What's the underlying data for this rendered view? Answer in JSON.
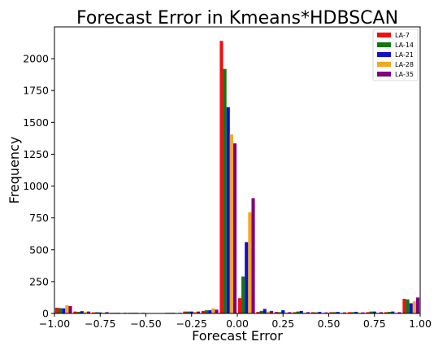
{
  "chart_data": {
    "type": "bar",
    "title": "Forecast Error in Kmeans*HDBSCAN",
    "xlabel": "Forecast Error",
    "ylabel": "Frequency",
    "xlim": [
      -1.0,
      1.0
    ],
    "ylim": [
      0,
      2250
    ],
    "xticks": [
      "−1.00",
      "−0.75",
      "−0.50",
      "−0.25",
      "0.00",
      "0.25",
      "0.50",
      "0.75",
      "1.00"
    ],
    "yticks": [
      "0",
      "250",
      "500",
      "750",
      "1000",
      "1250",
      "1500",
      "1750",
      "2000"
    ],
    "grid": false,
    "legend_position": "top-right",
    "categories": [
      -0.95,
      -0.85,
      -0.75,
      -0.65,
      -0.55,
      -0.45,
      -0.35,
      -0.25,
      -0.15,
      -0.05,
      0.05,
      0.15,
      0.25,
      0.35,
      0.45,
      0.55,
      0.65,
      0.75,
      0.85,
      0.95
    ],
    "series": [
      {
        "name": "LA-7",
        "color": "#ee1111",
        "values": [
          45,
          15,
          8,
          5,
          5,
          3,
          5,
          15,
          20,
          2140,
          120,
          12,
          12,
          10,
          10,
          10,
          10,
          10,
          10,
          115
        ]
      },
      {
        "name": "LA-14",
        "color": "#117711",
        "values": [
          42,
          12,
          10,
          5,
          5,
          3,
          5,
          15,
          25,
          1920,
          290,
          20,
          10,
          15,
          8,
          10,
          10,
          15,
          12,
          110
        ]
      },
      {
        "name": "LA-21",
        "color": "#1111cc",
        "values": [
          40,
          18,
          8,
          5,
          5,
          3,
          5,
          15,
          25,
          1620,
          560,
          35,
          25,
          20,
          12,
          12,
          12,
          15,
          15,
          80
        ]
      },
      {
        "name": "LA-28",
        "color": "#f5a623",
        "values": [
          65,
          10,
          5,
          3,
          3,
          3,
          3,
          12,
          40,
          1405,
          795,
          15,
          8,
          5,
          5,
          5,
          5,
          5,
          5,
          95
        ]
      },
      {
        "name": "LA-35",
        "color": "#800080",
        "values": [
          58,
          15,
          10,
          5,
          5,
          3,
          5,
          15,
          30,
          1335,
          905,
          20,
          10,
          10,
          8,
          8,
          8,
          10,
          10,
          125
        ]
      }
    ]
  }
}
